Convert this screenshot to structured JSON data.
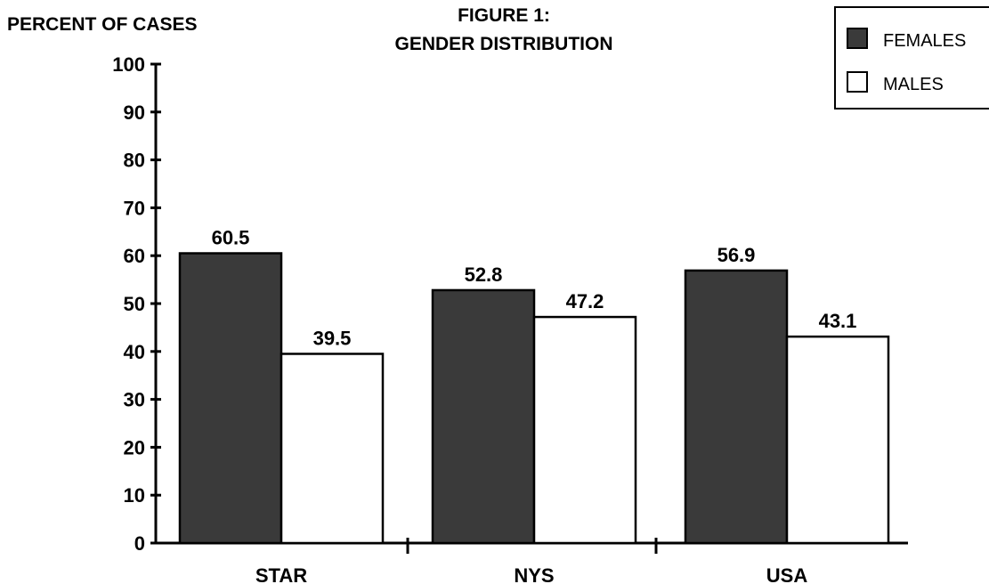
{
  "chart_data": {
    "type": "bar",
    "title": "FIGURE 1:",
    "subtitle": "GENDER DISTRIBUTION",
    "ylabel": "PERCENT OF CASES",
    "xlabel": "",
    "categories": [
      "STAR",
      "NYS",
      "USA"
    ],
    "series": [
      {
        "name": "FEMALES",
        "values": [
          60.5,
          52.8,
          56.9
        ],
        "value_labels": [
          "60.5",
          "52.8",
          "56.9"
        ]
      },
      {
        "name": "MALES",
        "values": [
          39.5,
          47.2,
          43.1
        ],
        "value_labels": [
          "39.5",
          "47.2",
          "43.1"
        ]
      }
    ],
    "ylim": [
      0,
      100
    ],
    "yticks": [
      0,
      10,
      20,
      30,
      40,
      50,
      60,
      70,
      80,
      90,
      100
    ],
    "grid": false,
    "legend_position": "top-right"
  },
  "colors": {
    "females_fill": "#3a3a3a",
    "males_fill": "#ffffff",
    "stroke": "#000000"
  }
}
